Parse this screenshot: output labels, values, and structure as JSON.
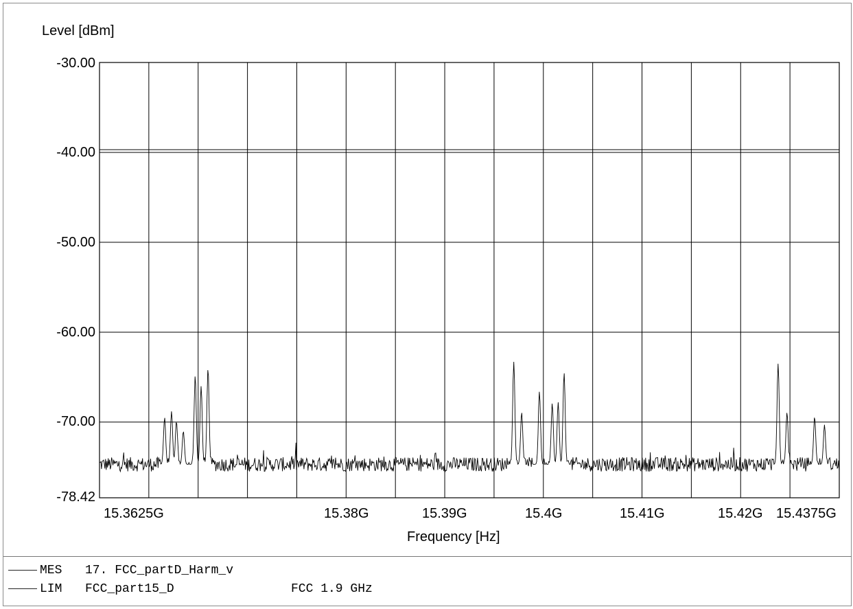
{
  "chart_data": {
    "type": "line",
    "ylabel": "Level [dBm]",
    "xlabel": "Frequency [Hz]",
    "ylim": [
      -78.42,
      -30.0
    ],
    "yticks": [
      "-30.00",
      "-40.00",
      "-50.00",
      "-60.00",
      "-70.00",
      "-78.42"
    ],
    "xlim": [
      15.355,
      15.43
    ],
    "xticks": [
      {
        "value": 15.3625,
        "label": "15.3625G"
      },
      {
        "value": 15.38,
        "label": "15.38G"
      },
      {
        "value": 15.39,
        "label": "15.39G"
      },
      {
        "value": 15.4,
        "label": "15.4G"
      },
      {
        "value": 15.41,
        "label": "15.41G"
      },
      {
        "value": 15.42,
        "label": "15.42G"
      },
      {
        "value": 15.4375,
        "label": "15.4375G"
      }
    ],
    "grid": true,
    "limit_lines": [
      -39.7,
      -40.0
    ],
    "noise_floor": -74.7,
    "peaks": [
      {
        "x": 15.3616,
        "y": -69.5
      },
      {
        "x": 15.3623,
        "y": -68.8
      },
      {
        "x": 15.3628,
        "y": -69.9
      },
      {
        "x": 15.3635,
        "y": -71.0
      },
      {
        "x": 15.3647,
        "y": -64.8
      },
      {
        "x": 15.3653,
        "y": -66.0
      },
      {
        "x": 15.366,
        "y": -64.0
      },
      {
        "x": 15.397,
        "y": -63.3
      },
      {
        "x": 15.3978,
        "y": -68.9
      },
      {
        "x": 15.3996,
        "y": -66.6
      },
      {
        "x": 15.4009,
        "y": -67.9
      },
      {
        "x": 15.4015,
        "y": -67.8
      },
      {
        "x": 15.4021,
        "y": -64.5
      },
      {
        "x": 15.4238,
        "y": -63.5
      },
      {
        "x": 15.4247,
        "y": -68.9
      },
      {
        "x": 15.4275,
        "y": -69.4
      },
      {
        "x": 15.4285,
        "y": -70.3
      }
    ],
    "series": [
      {
        "name": "MES",
        "values": []
      },
      {
        "name": "LIM",
        "values": [
          -39.7,
          -40.0
        ]
      }
    ]
  },
  "legend": [
    {
      "code": "MES",
      "name": "17. FCC_partD_Harm_v",
      "note": ""
    },
    {
      "code": "LIM",
      "name": "FCC_part15_D",
      "note": "FCC 1.9 GHz"
    }
  ]
}
